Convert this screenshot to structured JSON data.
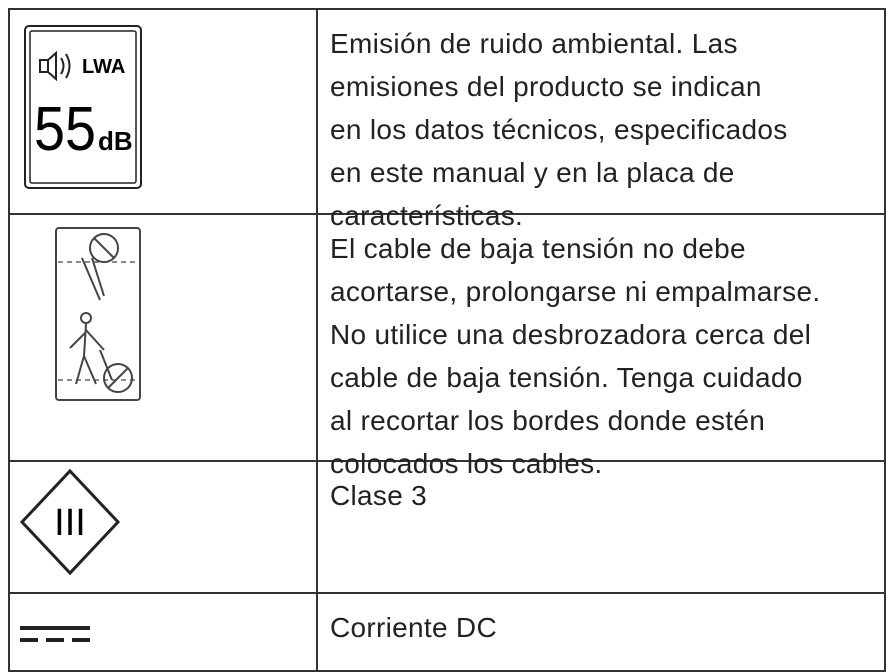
{
  "rows": [
    {
      "icon": {
        "label": "LWA",
        "value": "55",
        "unit": "dB"
      },
      "description": [
        "Emisión de ruido ambiental. Las",
        "emisiones del producto se indican",
        "en los datos técnicos, especificados",
        "en este manual y en la placa de",
        "características."
      ]
    },
    {
      "description": [
        "El cable de baja tensión no debe",
        "acortarse, prolongarse ni empalmarse.",
        "No utilice una desbrozadora cerca del",
        "cable de baja tensión. Tenga cuidado",
        "al recortar los bordes donde estén",
        "colocados los cables."
      ]
    },
    {
      "icon": {
        "label": "III"
      },
      "description": [
        "Clase 3"
      ]
    },
    {
      "description": [
        "Corriente DC"
      ]
    }
  ]
}
